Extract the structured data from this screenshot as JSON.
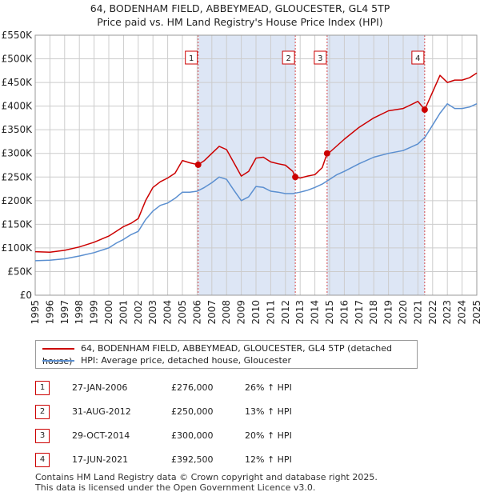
{
  "title": {
    "line1": "64, BODENHAM FIELD, ABBEYMEAD, GLOUCESTER, GL4 5TP",
    "line2": "Price paid vs. HM Land Registry's House Price Index (HPI)"
  },
  "legend": {
    "property_label": "64, BODENHAM FIELD, ABBEYMEAD, GLOUCESTER, GL4 5TP (detached house)",
    "hpi_label": "HPI: Average price, detached house, Gloucester"
  },
  "colors": {
    "property": "#cc0000",
    "hpi": "#5b8fd0",
    "shade": "#dde6f5",
    "grid": "#cccccc"
  },
  "sales": [
    {
      "num": "1",
      "date": "27-JAN-2006",
      "price": "£276,000",
      "hpi": "26% ↑ HPI"
    },
    {
      "num": "2",
      "date": "31-AUG-2012",
      "price": "£250,000",
      "hpi": "13% ↑ HPI"
    },
    {
      "num": "3",
      "date": "29-OCT-2014",
      "price": "£300,000",
      "hpi": "20% ↑ HPI"
    },
    {
      "num": "4",
      "date": "17-JUN-2021",
      "price": "£392,500",
      "hpi": "12% ↑ HPI"
    }
  ],
  "footer": {
    "line1": "Contains HM Land Registry data © Crown copyright and database right 2025.",
    "line2": "This data is licensed under the Open Government Licence v3.0."
  },
  "chart_data": {
    "type": "line",
    "title": "Price paid vs. HM Land Registry's House Price Index (HPI)",
    "xlabel": "",
    "ylabel": "",
    "xlim": [
      1995,
      2025
    ],
    "ylim": [
      0,
      550000
    ],
    "y_ticks": [
      0,
      50000,
      100000,
      150000,
      200000,
      250000,
      300000,
      350000,
      400000,
      450000,
      500000,
      550000
    ],
    "y_tick_labels": [
      "£0",
      "£50K",
      "£100K",
      "£150K",
      "£200K",
      "£250K",
      "£300K",
      "£350K",
      "£400K",
      "£450K",
      "£500K",
      "£550K"
    ],
    "x_ticks": [
      1995,
      1996,
      1997,
      1998,
      1999,
      2000,
      2001,
      2002,
      2003,
      2004,
      2005,
      2006,
      2007,
      2008,
      2009,
      2010,
      2011,
      2012,
      2013,
      2014,
      2015,
      2016,
      2017,
      2018,
      2019,
      2020,
      2021,
      2022,
      2023,
      2024,
      2025
    ],
    "shaded_ranges": [
      [
        2006.07,
        2012.67
      ],
      [
        2014.83,
        2021.46
      ]
    ],
    "series": [
      {
        "name": "64, BODENHAM FIELD, ABBEYMEAD, GLOUCESTER, GL4 5TP (detached house)",
        "x": [
          1995.0,
          1996.0,
          1997.0,
          1998.0,
          1999.0,
          2000.0,
          2000.5,
          2001.0,
          2001.5,
          2002.0,
          2002.5,
          2003.0,
          2003.5,
          2004.0,
          2004.5,
          2005.0,
          2005.5,
          2006.07,
          2006.5,
          2007.0,
          2007.5,
          2008.0,
          2008.5,
          2009.0,
          2009.5,
          2010.0,
          2010.5,
          2011.0,
          2011.5,
          2012.0,
          2012.5,
          2012.67,
          2013.0,
          2013.5,
          2014.0,
          2014.5,
          2014.83,
          2015.0,
          2016.0,
          2017.0,
          2018.0,
          2019.0,
          2020.0,
          2021.0,
          2021.46,
          2022.0,
          2022.5,
          2023.0,
          2023.5,
          2024.0,
          2024.5,
          2025.0
        ],
        "values": [
          92000,
          91000,
          95000,
          102000,
          112000,
          125000,
          135000,
          145000,
          152000,
          162000,
          200000,
          228000,
          240000,
          248000,
          258000,
          285000,
          280000,
          276000,
          285000,
          300000,
          315000,
          308000,
          280000,
          252000,
          262000,
          290000,
          292000,
          282000,
          278000,
          275000,
          262000,
          250000,
          248000,
          252000,
          255000,
          270000,
          300000,
          302000,
          330000,
          355000,
          375000,
          390000,
          395000,
          410000,
          392500,
          430000,
          465000,
          450000,
          455000,
          455000,
          460000,
          470000
        ]
      },
      {
        "name": "HPI: Average price, detached house, Gloucester",
        "x": [
          1995.0,
          1996.0,
          1997.0,
          1998.0,
          1999.0,
          2000.0,
          2000.5,
          2001.0,
          2001.5,
          2002.0,
          2002.5,
          2003.0,
          2003.5,
          2004.0,
          2004.5,
          2005.0,
          2005.5,
          2006.0,
          2006.5,
          2007.0,
          2007.5,
          2008.0,
          2008.5,
          2009.0,
          2009.5,
          2010.0,
          2010.5,
          2011.0,
          2011.5,
          2012.0,
          2012.5,
          2013.0,
          2013.5,
          2014.0,
          2014.5,
          2015.0,
          2015.5,
          2016.0,
          2017.0,
          2018.0,
          2019.0,
          2020.0,
          2021.0,
          2021.5,
          2022.0,
          2022.5,
          2023.0,
          2023.5,
          2024.0,
          2024.5,
          2025.0
        ],
        "values": [
          73000,
          74000,
          77000,
          83000,
          90000,
          100000,
          110000,
          118000,
          128000,
          135000,
          160000,
          178000,
          190000,
          195000,
          205000,
          218000,
          218000,
          220000,
          228000,
          238000,
          250000,
          245000,
          222000,
          200000,
          208000,
          230000,
          228000,
          220000,
          218000,
          215000,
          215000,
          218000,
          222000,
          228000,
          235000,
          245000,
          255000,
          262000,
          278000,
          292000,
          300000,
          306000,
          320000,
          335000,
          360000,
          385000,
          405000,
          395000,
          395000,
          398000,
          405000
        ]
      }
    ],
    "markers": [
      {
        "label": "1",
        "x": 2006.07,
        "y": 276000
      },
      {
        "label": "2",
        "x": 2012.67,
        "y": 250000
      },
      {
        "label": "3",
        "x": 2014.83,
        "y": 300000
      },
      {
        "label": "4",
        "x": 2021.46,
        "y": 392500
      }
    ]
  }
}
